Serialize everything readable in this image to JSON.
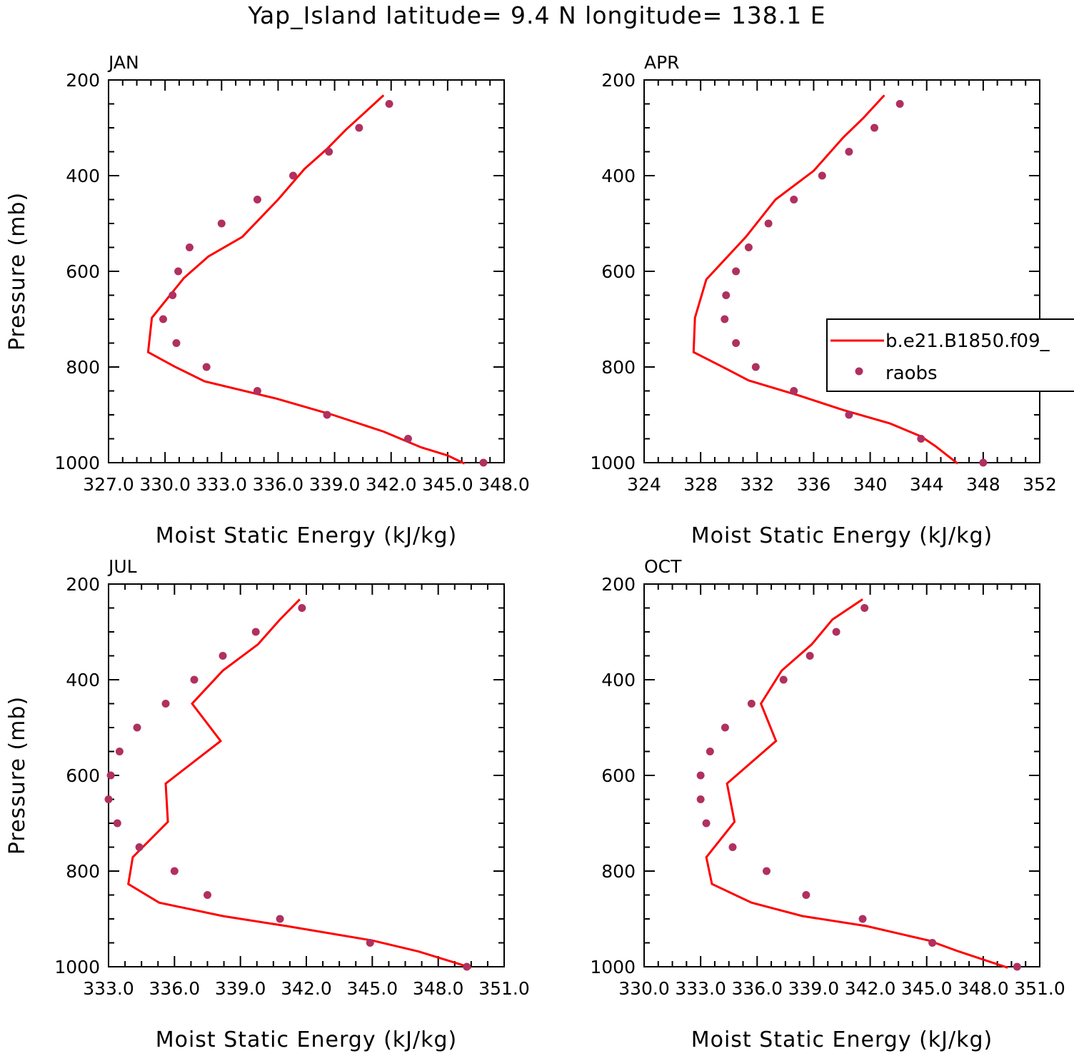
{
  "title": "Yap_Island  latitude= 9.4 N longitude= 138.1 E",
  "colors": {
    "model": "#ff0000",
    "obs": "#b03060",
    "axis": "#000000"
  },
  "legend": {
    "model_label": "b.e21.B1850.f09_",
    "obs_label": "raobs",
    "panel": "APR",
    "placement": "right-middle"
  },
  "chart_data": [
    {
      "type": "line",
      "panel": "JAN",
      "xlabel": "Moist Static Energy (kJ/kg)",
      "ylabel": "Pressure (mb)",
      "xlim": [
        327.0,
        348.0
      ],
      "ylim": [
        1000,
        200
      ],
      "xticks": [
        "327.0",
        "330.0",
        "333.0",
        "336.0",
        "339.0",
        "342.0",
        "345.0",
        "348.0"
      ],
      "yticks": [
        "200",
        "400",
        "600",
        "800",
        "1000"
      ],
      "series": [
        {
          "name": "b.e21.B1850.f09_",
          "kind": "line",
          "x": [
            341.6,
            340.6,
            339.6,
            338.6,
            337.4,
            336.0,
            334.1,
            332.3,
            331.0,
            329.3,
            329.1,
            330.5,
            332.1,
            335.9,
            338.9,
            341.6,
            343.6,
            345.0,
            345.9
          ],
          "y": [
            232,
            268,
            304,
            344,
            386,
            450,
            528,
            569,
            614,
            697,
            769,
            799,
            830,
            866,
            900,
            935,
            968,
            985,
            1002
          ]
        },
        {
          "name": "raobs",
          "kind": "scatter",
          "x": [
            341.9,
            340.3,
            338.7,
            336.8,
            334.9,
            333.0,
            331.3,
            330.7,
            330.4,
            329.9,
            330.6,
            332.2,
            334.9,
            338.6,
            342.9,
            346.9
          ],
          "y": [
            250,
            300,
            350,
            400,
            450,
            500,
            550,
            600,
            650,
            700,
            750,
            800,
            850,
            900,
            950,
            1000
          ]
        }
      ]
    },
    {
      "type": "line",
      "panel": "APR",
      "xlabel": "Moist Static Energy (kJ/kg)",
      "ylabel": "",
      "xlim": [
        324,
        352
      ],
      "ylim": [
        1000,
        200
      ],
      "xticks": [
        "324",
        "328",
        "332",
        "336",
        "340",
        "344",
        "348",
        "352"
      ],
      "yticks": [
        "200",
        "400",
        "600",
        "800",
        "1000"
      ],
      "series": [
        {
          "name": "b.e21.B1850.f09_",
          "kind": "line",
          "x": [
            341.0,
            339.5,
            338.1,
            336.0,
            333.3,
            331.2,
            328.4,
            327.6,
            327.5,
            329.5,
            331.4,
            335.0,
            338.1,
            341.4,
            343.6,
            344.6,
            346.2
          ],
          "y": [
            232,
            280,
            320,
            390,
            450,
            528,
            617,
            697,
            769,
            799,
            828,
            860,
            890,
            918,
            945,
            965,
            1002
          ]
        },
        {
          "name": "raobs",
          "kind": "scatter",
          "x": [
            342.1,
            340.3,
            338.5,
            336.6,
            334.6,
            332.8,
            331.4,
            330.5,
            329.8,
            329.7,
            330.5,
            331.9,
            334.6,
            338.5,
            343.6,
            348.0
          ],
          "y": [
            250,
            300,
            350,
            400,
            450,
            500,
            550,
            600,
            650,
            700,
            750,
            800,
            850,
            900,
            950,
            1000
          ]
        }
      ]
    },
    {
      "type": "line",
      "panel": "JUL",
      "xlabel": "Moist Static Energy (kJ/kg)",
      "ylabel": "Pressure (mb)",
      "xlim": [
        333.0,
        351.0
      ],
      "ylim": [
        1000,
        200
      ],
      "xticks": [
        "333.0",
        "336.0",
        "339.0",
        "342.0",
        "345.0",
        "348.0",
        "351.0"
      ],
      "yticks": [
        "200",
        "400",
        "600",
        "800",
        "1000"
      ],
      "series": [
        {
          "name": "b.e21.B1850.f09_",
          "kind": "line",
          "x": [
            341.7,
            340.8,
            339.8,
            338.2,
            336.8,
            338.1,
            335.6,
            335.7,
            334.1,
            333.9,
            335.3,
            338.2,
            341.1,
            345.0,
            347.1,
            348.3,
            349.5
          ],
          "y": [
            232,
            274,
            326,
            381,
            450,
            528,
            617,
            697,
            771,
            827,
            866,
            894,
            915,
            945,
            968,
            985,
            1002
          ]
        },
        {
          "name": "raobs",
          "kind": "scatter",
          "x": [
            341.8,
            339.7,
            338.2,
            336.9,
            335.6,
            334.3,
            333.5,
            333.1,
            333.0,
            333.4,
            334.4,
            336.0,
            337.5,
            340.8,
            344.9,
            349.3
          ],
          "y": [
            250,
            300,
            350,
            400,
            450,
            500,
            550,
            600,
            650,
            700,
            750,
            800,
            850,
            900,
            950,
            1000
          ]
        }
      ]
    },
    {
      "type": "line",
      "panel": "OCT",
      "xlabel": "Moist Static Energy (kJ/kg)",
      "ylabel": "",
      "xlim": [
        330.0,
        351.0
      ],
      "ylim": [
        1000,
        200
      ],
      "xticks": [
        "330.0",
        "333.0",
        "336.0",
        "339.0",
        "342.0",
        "345.0",
        "348.0",
        "351.0"
      ],
      "yticks": [
        "200",
        "400",
        "600",
        "800",
        "1000"
      ],
      "series": [
        {
          "name": "b.e21.B1850.f09_",
          "kind": "line",
          "x": [
            341.6,
            340.0,
            338.9,
            337.3,
            336.2,
            337.0,
            334.4,
            334.8,
            333.3,
            333.6,
            335.7,
            338.4,
            341.8,
            345.1,
            346.7,
            348.0,
            349.3
          ],
          "y": [
            232,
            274,
            326,
            381,
            450,
            528,
            617,
            697,
            771,
            827,
            866,
            894,
            915,
            945,
            968,
            985,
            1002
          ]
        },
        {
          "name": "raobs",
          "kind": "scatter",
          "x": [
            341.7,
            340.2,
            338.8,
            337.4,
            335.7,
            334.3,
            333.5,
            333.0,
            333.0,
            333.3,
            334.7,
            336.5,
            338.6,
            341.6,
            345.3,
            349.8
          ],
          "y": [
            250,
            300,
            350,
            400,
            450,
            500,
            550,
            600,
            650,
            700,
            750,
            800,
            850,
            900,
            950,
            1000
          ]
        }
      ]
    }
  ]
}
